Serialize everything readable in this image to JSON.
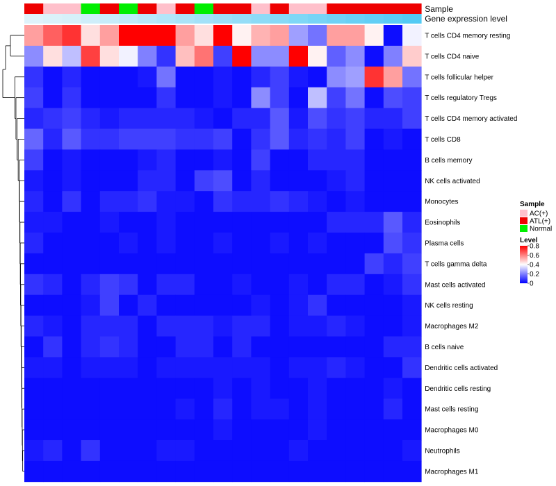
{
  "chart_data": {
    "type": "heatmap",
    "annotation_labels": [
      "Sample",
      "Gene expression level"
    ],
    "rows": [
      "T cells CD4 memory resting",
      "T cells CD4 naive",
      "T cells follicular helper",
      "T cells regulatory  Tregs",
      "T cells CD4 memory activated",
      "T cells CD8",
      "B cells memory",
      "NK cells activated",
      "Monocytes",
      "Eosinophils",
      "Plasma cells",
      "T cells gamma delta",
      "Mast cells activated",
      "NK cells resting",
      "Macrophages M2",
      "B cells naive",
      "Dendritic cells activated",
      "Dendritic cells resting",
      "Mast cells resting",
      "Macrophages M0",
      "Neutrophils",
      "Macrophages M1"
    ],
    "sample_groups": [
      "ATL(+)",
      "AC(+)",
      "AC(+)",
      "Normal",
      "ATL(+)",
      "Normal",
      "ATL(+)",
      "AC(+)",
      "ATL(+)",
      "Normal",
      "ATL(+)",
      "ATL(+)",
      "AC(+)",
      "ATL(+)",
      "AC(+)",
      "AC(+)",
      "ATL(+)",
      "ATL(+)",
      "ATL(+)",
      "ATL(+)",
      "ATL(+)"
    ],
    "gene_expression_level": [
      0.05,
      0.08,
      0.1,
      0.14,
      0.18,
      0.22,
      0.26,
      0.3,
      0.34,
      0.38,
      0.42,
      0.46,
      0.5,
      0.54,
      0.58,
      0.62,
      0.66,
      0.7,
      0.74,
      0.78,
      0.82
    ],
    "values": [
      [
        0.55,
        0.65,
        0.72,
        0.45,
        0.55,
        0.8,
        0.8,
        0.8,
        0.55,
        0.45,
        0.8,
        0.42,
        0.52,
        0.55,
        0.25,
        0.18,
        0.55,
        0.55,
        0.42,
        0.02,
        0.38
      ],
      [
        0.22,
        0.45,
        0.3,
        0.7,
        0.45,
        0.38,
        0.2,
        0.08,
        0.5,
        0.62,
        0.1,
        0.8,
        0.22,
        0.22,
        0.8,
        0.42,
        0.15,
        0.22,
        0.02,
        0.2,
        0.48
      ],
      [
        0.08,
        0.02,
        0.06,
        0.02,
        0.02,
        0.02,
        0.04,
        0.18,
        0.02,
        0.02,
        0.04,
        0.02,
        0.06,
        0.1,
        0.04,
        0.02,
        0.22,
        0.25,
        0.72,
        0.55,
        0.18
      ],
      [
        0.1,
        0.02,
        0.08,
        0.02,
        0.02,
        0.02,
        0.02,
        0.08,
        0.02,
        0.02,
        0.04,
        0.02,
        0.22,
        0.1,
        0.02,
        0.3,
        0.1,
        0.18,
        0.02,
        0.12,
        0.1
      ],
      [
        0.06,
        0.08,
        0.1,
        0.06,
        0.04,
        0.06,
        0.06,
        0.06,
        0.06,
        0.04,
        0.02,
        0.06,
        0.06,
        0.14,
        0.04,
        0.12,
        0.08,
        0.1,
        0.06,
        0.06,
        0.1
      ],
      [
        0.16,
        0.06,
        0.14,
        0.08,
        0.08,
        0.1,
        0.1,
        0.1,
        0.08,
        0.08,
        0.1,
        0.02,
        0.08,
        0.14,
        0.06,
        0.08,
        0.06,
        0.1,
        0.02,
        0.04,
        0.02
      ],
      [
        0.1,
        0.02,
        0.04,
        0.02,
        0.02,
        0.02,
        0.04,
        0.06,
        0.02,
        0.02,
        0.04,
        0.02,
        0.1,
        0.02,
        0.02,
        0.06,
        0.06,
        0.06,
        0.02,
        0.02,
        0.02
      ],
      [
        0.04,
        0.02,
        0.04,
        0.02,
        0.02,
        0.02,
        0.06,
        0.06,
        0.02,
        0.1,
        0.12,
        0.02,
        0.06,
        0.02,
        0.02,
        0.02,
        0.04,
        0.06,
        0.02,
        0.02,
        0.02
      ],
      [
        0.06,
        0.02,
        0.08,
        0.02,
        0.06,
        0.06,
        0.08,
        0.04,
        0.04,
        0.02,
        0.08,
        0.06,
        0.06,
        0.08,
        0.06,
        0.04,
        0.02,
        0.04,
        0.02,
        0.02,
        0.02
      ],
      [
        0.04,
        0.04,
        0.02,
        0.02,
        0.04,
        0.02,
        0.02,
        0.04,
        0.02,
        0.02,
        0.02,
        0.02,
        0.02,
        0.02,
        0.02,
        0.02,
        0.06,
        0.06,
        0.06,
        0.14,
        0.06
      ],
      [
        0.06,
        0.02,
        0.02,
        0.02,
        0.02,
        0.04,
        0.02,
        0.04,
        0.02,
        0.02,
        0.04,
        0.02,
        0.02,
        0.04,
        0.02,
        0.04,
        0.02,
        0.02,
        0.02,
        0.12,
        0.08
      ],
      [
        0.02,
        0.02,
        0.02,
        0.02,
        0.02,
        0.02,
        0.02,
        0.02,
        0.02,
        0.02,
        0.02,
        0.02,
        0.02,
        0.02,
        0.02,
        0.02,
        0.02,
        0.02,
        0.1,
        0.06,
        0.1
      ],
      [
        0.08,
        0.06,
        0.02,
        0.06,
        0.1,
        0.08,
        0.02,
        0.06,
        0.06,
        0.02,
        0.02,
        0.04,
        0.02,
        0.02,
        0.04,
        0.02,
        0.06,
        0.06,
        0.02,
        0.04,
        0.08
      ],
      [
        0.02,
        0.02,
        0.02,
        0.04,
        0.1,
        0.02,
        0.06,
        0.02,
        0.02,
        0.02,
        0.02,
        0.02,
        0.04,
        0.02,
        0.04,
        0.08,
        0.02,
        0.02,
        0.02,
        0.02,
        0.04
      ],
      [
        0.06,
        0.04,
        0.02,
        0.06,
        0.06,
        0.06,
        0.02,
        0.06,
        0.06,
        0.06,
        0.04,
        0.06,
        0.06,
        0.02,
        0.04,
        0.04,
        0.06,
        0.04,
        0.02,
        0.02,
        0.04
      ],
      [
        0.02,
        0.08,
        0.02,
        0.06,
        0.08,
        0.06,
        0.02,
        0.02,
        0.06,
        0.06,
        0.02,
        0.06,
        0.02,
        0.02,
        0.02,
        0.02,
        0.02,
        0.02,
        0.02,
        0.06,
        0.06
      ],
      [
        0.04,
        0.04,
        0.02,
        0.04,
        0.04,
        0.04,
        0.02,
        0.04,
        0.04,
        0.04,
        0.04,
        0.04,
        0.04,
        0.02,
        0.04,
        0.04,
        0.06,
        0.04,
        0.02,
        0.02,
        0.08
      ],
      [
        0.02,
        0.02,
        0.02,
        0.02,
        0.02,
        0.02,
        0.02,
        0.02,
        0.02,
        0.02,
        0.04,
        0.02,
        0.04,
        0.02,
        0.02,
        0.04,
        0.02,
        0.02,
        0.02,
        0.04,
        0.02
      ],
      [
        0.02,
        0.02,
        0.02,
        0.02,
        0.02,
        0.02,
        0.02,
        0.02,
        0.04,
        0.02,
        0.06,
        0.02,
        0.04,
        0.04,
        0.02,
        0.04,
        0.02,
        0.02,
        0.02,
        0.06,
        0.02
      ],
      [
        0.02,
        0.02,
        0.02,
        0.02,
        0.02,
        0.02,
        0.02,
        0.02,
        0.02,
        0.02,
        0.04,
        0.02,
        0.02,
        0.02,
        0.02,
        0.04,
        0.02,
        0.02,
        0.02,
        0.02,
        0.02
      ],
      [
        0.04,
        0.06,
        0.02,
        0.08,
        0.02,
        0.02,
        0.02,
        0.04,
        0.04,
        0.02,
        0.02,
        0.02,
        0.02,
        0.02,
        0.04,
        0.02,
        0.02,
        0.02,
        0.02,
        0.02,
        0.04
      ],
      [
        0.02,
        0.02,
        0.02,
        0.02,
        0.02,
        0.02,
        0.02,
        0.02,
        0.02,
        0.02,
        0.02,
        0.02,
        0.02,
        0.02,
        0.02,
        0.02,
        0.02,
        0.02,
        0.02,
        0.02,
        0.02
      ]
    ],
    "legend": {
      "sample_title": "Sample",
      "sample_entries": [
        {
          "label": "AC(+)",
          "color": "#ffc0cb"
        },
        {
          "label": "ATL(+)",
          "color": "#ee0000"
        },
        {
          "label": "Normal",
          "color": "#00ee00"
        }
      ],
      "level_title": "Level",
      "level_ticks": [
        "0.8",
        "0.6",
        "0.4",
        "0.2",
        "0"
      ],
      "level_tick_values": [
        0.8,
        0.6,
        0.4,
        0.2,
        0
      ],
      "position": "right"
    },
    "color_scale": {
      "low": "#0000ff",
      "mid": "#ffffff",
      "high": "#ff0000",
      "min": 0,
      "mid_value": 0.4,
      "max": 0.8
    },
    "expression_scale": {
      "low": "#e8f6fb",
      "high": "#4ec8f4",
      "min": 0,
      "max": 0.85
    }
  }
}
